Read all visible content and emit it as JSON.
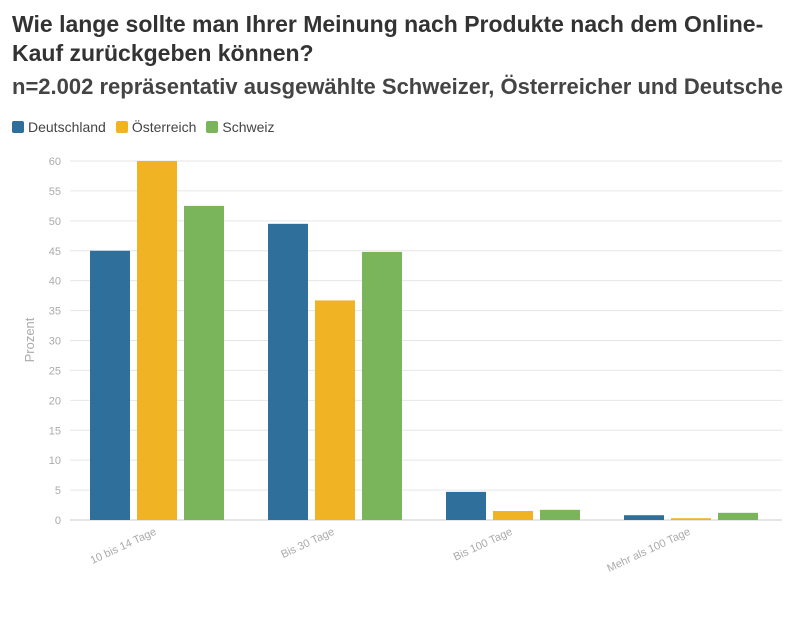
{
  "title": "Wie lange sollte man Ihrer Meinung nach Produkte nach dem Online-Kauf zurückgeben können?",
  "subtitle": "n=2.002 repräsentativ ausgewählte Schweizer, Österreicher und Deutsche",
  "legend": [
    {
      "name": "Deutschland",
      "color": "#2e6f9b"
    },
    {
      "name": "Österreich",
      "color": "#f0b323"
    },
    {
      "name": "Schweiz",
      "color": "#7ab55c"
    }
  ],
  "chart_data": {
    "type": "bar",
    "title": "Wie lange sollte man Ihrer Meinung nach Produkte nach dem Online-Kauf zurückgeben können?",
    "subtitle": "n=2.002 repräsentativ ausgewählte Schweizer, Österreicher und Deutsche",
    "xlabel": "",
    "ylabel": "Prozent",
    "ylim": [
      0,
      60
    ],
    "yticks": [
      0,
      5,
      10,
      15,
      20,
      25,
      30,
      35,
      40,
      45,
      50,
      55,
      60
    ],
    "grid": true,
    "legend_position": "top-left",
    "categories": [
      "10 bis 14 Tage",
      "Bis 30 Tage",
      "Bis 100 Tage",
      "Mehr als 100 Tage"
    ],
    "series": [
      {
        "name": "Deutschland",
        "color": "#2e6f9b",
        "values": [
          45,
          49.5,
          4.7,
          0.8
        ]
      },
      {
        "name": "Österreich",
        "color": "#f0b323",
        "values": [
          60,
          36.7,
          1.5,
          0.3
        ]
      },
      {
        "name": "Schweiz",
        "color": "#7ab55c",
        "values": [
          52.5,
          44.8,
          1.7,
          1.2
        ]
      }
    ]
  }
}
